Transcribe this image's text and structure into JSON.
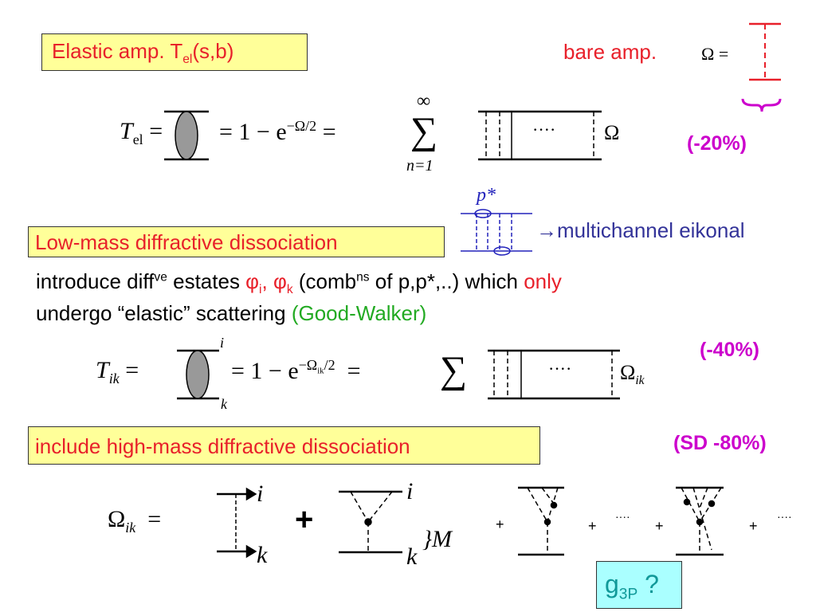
{
  "boxes": {
    "elastic": {
      "label": "Elastic amp.  T",
      "sub": "el",
      "tail": "(s,b)"
    },
    "low_mass": "Low-mass diffractive dissociation",
    "high_mass": "include high-mass diffractive dissociation"
  },
  "bare": {
    "label": "bare amp.",
    "omega": "Ω ="
  },
  "percent": {
    "elastic": "(-20%)",
    "multichannel": "(-40%)",
    "sd": "(SD -80%)"
  },
  "eq1": {
    "lhs": "T",
    "lhs_sub": "el",
    "eq": "=",
    "mid": "= 1 − e",
    "exp": "−Ω/2",
    "eq2": "=",
    "sum": "∑",
    "sum_top": "∞",
    "sum_bottom": "n=1",
    "dots": "····",
    "omega": "Ω"
  },
  "pstar": "p*",
  "multichannel": "→multichannel eikonal",
  "body": {
    "line1_a": "introduce diff",
    "line1_sup": "ve",
    "line1_b": " estates ",
    "phi_i": "φ",
    "phi_i_sub": "i",
    "comma": ", ",
    "phi_k": "φ",
    "phi_k_sub": "k",
    "line1_c": " (comb",
    "line1_sup2": "ns",
    "line1_d": " of p,p*,..) which ",
    "only": "only",
    "line2_a": "undergo “elastic” scattering ",
    "good_walker": "(Good-Walker)"
  },
  "eq2": {
    "lhs": "T",
    "lhs_sub": "ik",
    "eq": "=",
    "i": "i",
    "k": "k",
    "mid": "= 1 − e",
    "exp": "−Ω",
    "exp_sub": "ik",
    "exp_tail": "/2",
    "eq2": "=",
    "sum": "∑",
    "dots": "····",
    "omega": "Ω",
    "omega_sub": "ik"
  },
  "eq3": {
    "lhs": "Ω",
    "lhs_sub": "ik",
    "eq": "=",
    "i": "i",
    "k": "k",
    "plus_big": "+",
    "i2": "i",
    "k2": "k",
    "brace_m": "}M",
    "plus": "+",
    "dots": "····"
  },
  "g3p": {
    "g": "g",
    "sub": "3P",
    "q": " ?"
  },
  "colors": {
    "red": "#e8202a",
    "magenta": "#cc00cc",
    "blue": "#2222bb",
    "navy": "#333399",
    "green": "#22aa22",
    "teal": "#119999",
    "yellow": "#ffff99",
    "cyan": "#aaffff"
  }
}
